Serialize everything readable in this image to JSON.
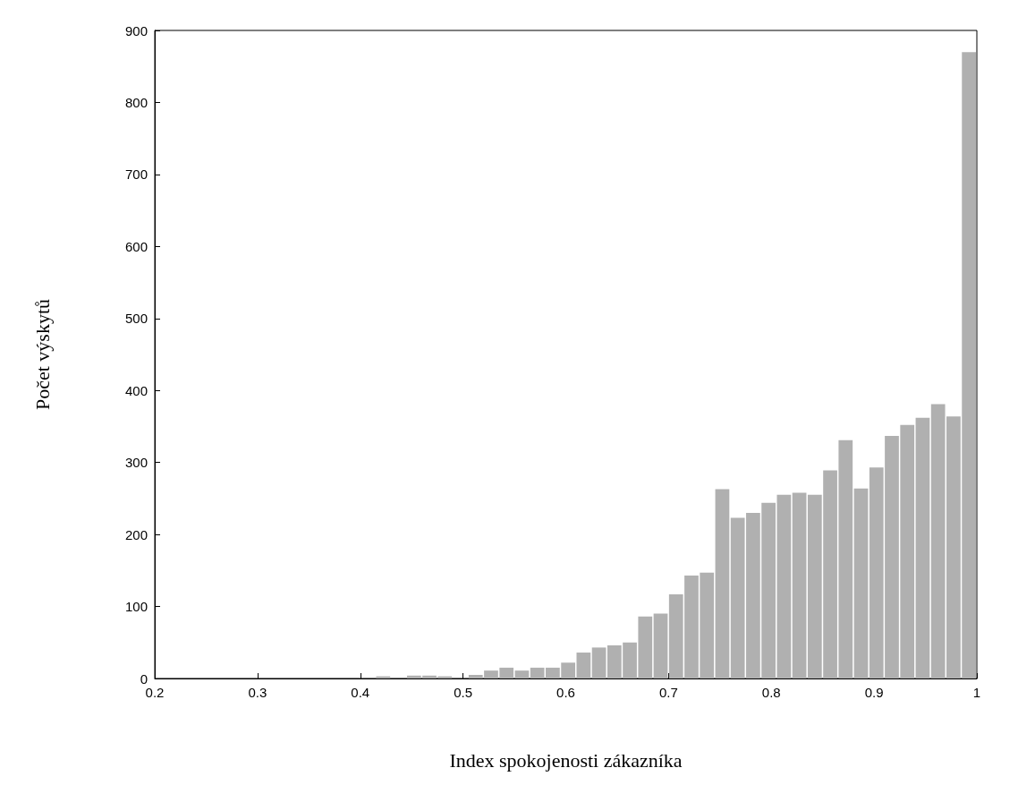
{
  "chart_data": {
    "type": "histogram",
    "xlabel": "Index spokojenosti zákazníka",
    "ylabel": "Počet výskytů",
    "color": "#b0b0b0",
    "bins": [
      0.25,
      0.265,
      0.28,
      0.295,
      0.31,
      0.325,
      0.34,
      0.355,
      0.37,
      0.385,
      0.4,
      0.415,
      0.43,
      0.445,
      0.46,
      0.475,
      0.49,
      0.505,
      0.52,
      0.535,
      0.55,
      0.565,
      0.58,
      0.595,
      0.61,
      0.625,
      0.64,
      0.655,
      0.67,
      0.685,
      0.7,
      0.715,
      0.73,
      0.745,
      0.76,
      0.775,
      0.79,
      0.805,
      0.82,
      0.835,
      0.85,
      0.865,
      0.88,
      0.895,
      0.91,
      0.925,
      0.94,
      0.955,
      0.97,
      0.985,
      1.0
    ],
    "values": [
      0,
      0,
      0,
      0,
      0,
      0,
      0,
      0,
      0,
      0,
      0,
      3,
      0,
      4,
      4,
      3,
      0,
      5,
      11,
      15,
      11,
      15,
      15,
      22,
      36,
      43,
      46,
      50,
      86,
      90,
      117,
      143,
      147,
      263,
      223,
      230,
      244,
      255,
      258,
      255,
      289,
      331,
      264,
      293,
      337,
      352,
      362,
      381,
      364,
      870
    ],
    "xlim": [
      0.2,
      1
    ],
    "xticks": [
      0.2,
      0.3,
      0.4,
      0.5,
      0.6,
      0.7,
      0.8,
      0.9,
      1
    ],
    "ylim": [
      0,
      900
    ],
    "yticks": [
      0,
      100,
      200,
      300,
      400,
      500,
      600,
      700,
      800,
      900
    ],
    "grid": false
  }
}
